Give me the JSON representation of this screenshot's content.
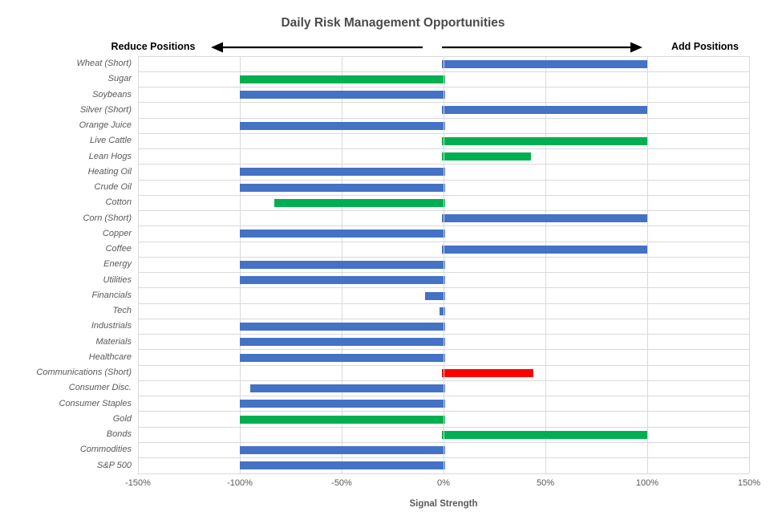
{
  "title": "Daily Risk Management Opportunities",
  "annotations": {
    "left_label": "Reduce Positions",
    "right_label": "Add Positions"
  },
  "chart_data": {
    "type": "bar",
    "orientation": "horizontal",
    "title": "Daily Risk Management Opportunities",
    "xlabel": "Signal Strength",
    "xlim": [
      -150,
      150
    ],
    "x_ticks": [
      -150,
      -100,
      -50,
      0,
      50,
      100,
      150
    ],
    "x_tick_labels": [
      "-150%",
      "-100%",
      "-50%",
      "0%",
      "50%",
      "100%",
      "150%"
    ],
    "grid": true,
    "unit": "percent",
    "categories": [
      "Wheat (Short)",
      "Sugar",
      "Soybeans",
      "Silver (Short)",
      "Orange Juice",
      "Live Cattle",
      "Lean Hogs",
      "Heating Oil",
      "Crude Oil",
      "Cotton",
      "Corn (Short)",
      "Copper",
      "Coffee",
      "Energy",
      "Utilities",
      "Financials",
      "Tech",
      "Industrials",
      "Materials",
      "Healthcare",
      "Communications (Short)",
      "Consumer Disc.",
      "Consumer Staples",
      "Gold",
      "Bonds",
      "Commodities",
      "S&P 500"
    ],
    "values": [
      100,
      -100,
      -100,
      100,
      -100,
      100,
      43,
      -100,
      -100,
      -83,
      100,
      -100,
      100,
      -100,
      -100,
      -9,
      -2,
      -100,
      -100,
      -100,
      44,
      -95,
      -100,
      -100,
      100,
      -100,
      -100
    ],
    "bar_colors": [
      "blue",
      "green",
      "blue",
      "blue",
      "blue",
      "green",
      "green",
      "blue",
      "blue",
      "green",
      "blue",
      "blue",
      "blue",
      "blue",
      "blue",
      "blue",
      "blue",
      "blue",
      "blue",
      "blue",
      "red",
      "blue",
      "blue",
      "green",
      "green",
      "blue",
      "blue"
    ],
    "colors": {
      "blue": "#4472C4",
      "green": "#00B050",
      "red": "#FF0000"
    },
    "gridline_color": "#d9d9d9",
    "title_color": "#4a4a4a",
    "label_color": "#595959"
  }
}
